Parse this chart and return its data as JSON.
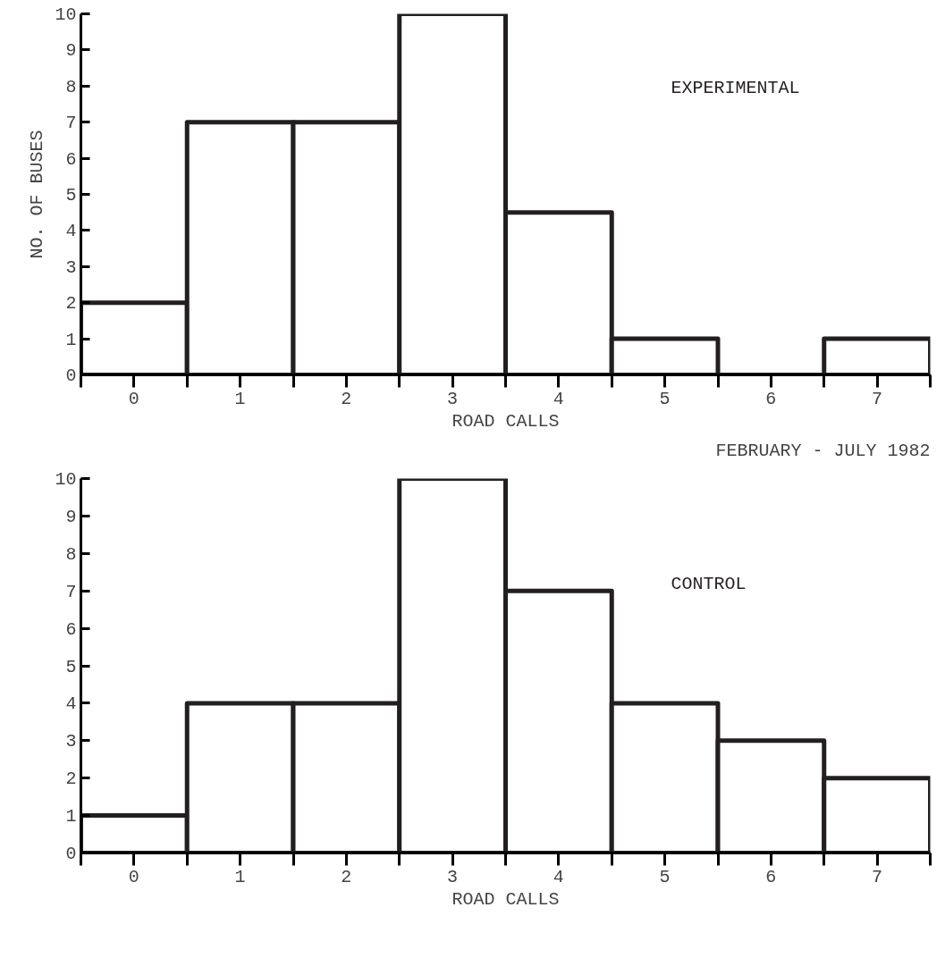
{
  "chart_data": [
    {
      "type": "histogram",
      "ylabel": "NO. OF BUSES",
      "xlabel": "ROAD CALLS",
      "annotations": [
        "FEBRUARY - JULY 1982"
      ],
      "bins": [
        -0.5,
        0.5,
        1.5,
        2.5,
        3.5,
        4.5,
        5.5,
        6.5,
        7.5
      ],
      "series": [
        {
          "name": "EXPERIMENTAL",
          "color": "#231f20",
          "values": [
            2,
            7,
            7,
            10,
            4.5,
            1,
            0,
            1
          ]
        }
      ],
      "xlim": [
        -0.5,
        7.5
      ],
      "ylim": [
        0,
        10
      ],
      "xticks": [
        {
          "value": -0.5,
          "label": null
        },
        0,
        {
          "value": 0.5,
          "label": null
        },
        1,
        {
          "value": 1.5,
          "label": null
        },
        2,
        {
          "value": 2.5,
          "label": null
        },
        3,
        {
          "value": 3.5,
          "label": null
        },
        4,
        {
          "value": 4.5,
          "label": null
        },
        5,
        {
          "value": 5.5,
          "label": null
        },
        6,
        {
          "value": 6.5,
          "label": null
        },
        7,
        {
          "value": 7.5,
          "label": null
        }
      ],
      "yticks": [
        0,
        1,
        2,
        3,
        4,
        5,
        6,
        7,
        8,
        9,
        10
      ],
      "grid": false,
      "legend": false
    },
    {
      "type": "histogram",
      "xlabel": "ROAD CALLS",
      "bins": [
        -0.5,
        0.5,
        1.5,
        2.5,
        3.5,
        4.5,
        5.5,
        6.5,
        7.5
      ],
      "series": [
        {
          "name": "CONTROL",
          "color": "#231f20",
          "values": [
            1,
            4,
            4,
            10,
            7,
            4,
            3,
            2
          ]
        }
      ],
      "xlim": [
        -0.5,
        7.5
      ],
      "ylim": [
        0,
        10
      ],
      "xticks": [
        {
          "value": -0.5,
          "label": null
        },
        0,
        {
          "value": 0.5,
          "label": null
        },
        1,
        {
          "value": 1.5,
          "label": null
        },
        2,
        {
          "value": 2.5,
          "label": null
        },
        3,
        {
          "value": 3.5,
          "label": null
        },
        4,
        {
          "value": 4.5,
          "label": null
        },
        5,
        {
          "value": 5.5,
          "label": null
        },
        6,
        {
          "value": 6.5,
          "label": null
        },
        7,
        {
          "value": 7.5,
          "label": null
        }
      ],
      "yticks": [
        0,
        1,
        2,
        3,
        4,
        5,
        6,
        7,
        8,
        9,
        10
      ],
      "grid": false,
      "legend": false
    }
  ]
}
